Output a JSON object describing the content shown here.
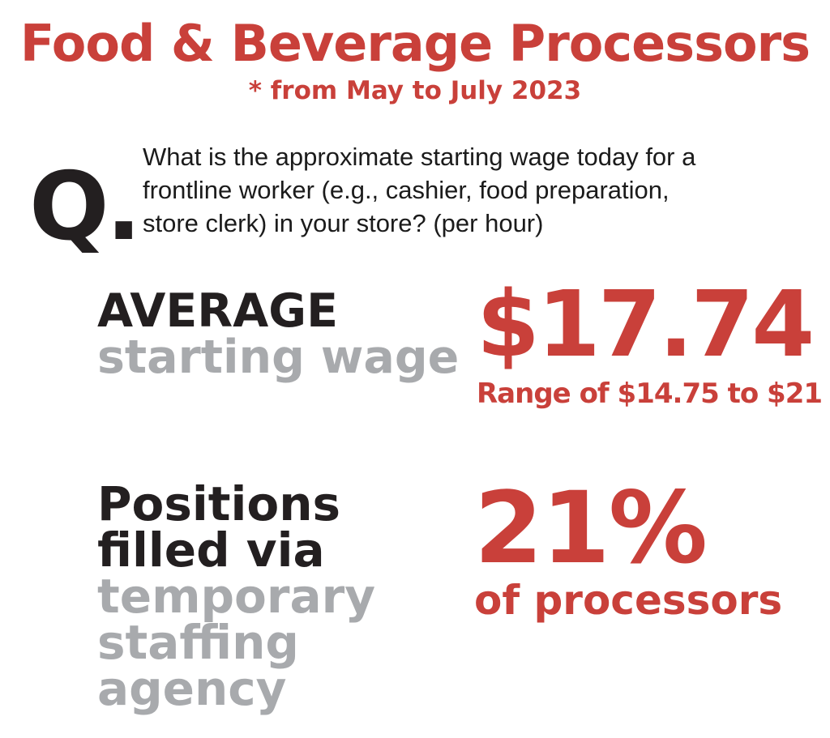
{
  "page": {
    "title": "Food & Beverage Processors",
    "subtitle": "* from May to July 2023"
  },
  "question": {
    "marker": "Q.",
    "lines": [
      "What is the approximate starting wage today for a",
      "frontline worker (e.g., cashier, food preparation,",
      "store clerk) in your store? (per hour)"
    ]
  },
  "stats": [
    {
      "label_dark_lines": [
        "AVERAGE"
      ],
      "label_gray_lines": [
        "starting wage"
      ],
      "value": "$17.74",
      "note": "Range of $14.75 to $21"
    },
    {
      "label_dark_lines": [
        "Positions",
        "filled via"
      ],
      "label_gray_lines": [
        "temporary",
        "staffing",
        "agency"
      ],
      "value": "21%",
      "note": "of processors"
    }
  ],
  "colors": {
    "accent_red": "#c9403a",
    "text_dark": "#231f20",
    "text_gray": "#a8aaad"
  }
}
